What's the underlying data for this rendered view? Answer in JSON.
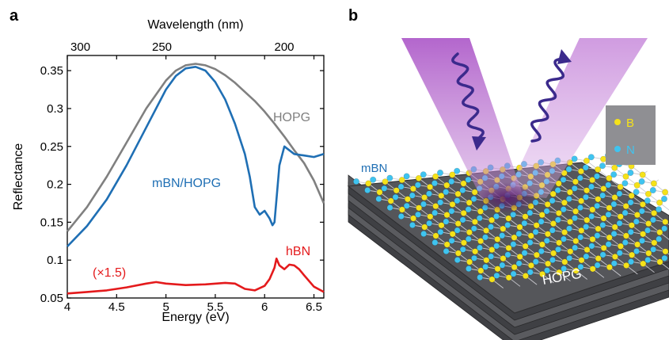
{
  "panel_a": {
    "label": "a"
  },
  "panel_b": {
    "label": "b",
    "layer_label": "mBN",
    "substrate_label": "HOPG",
    "legend": [
      {
        "text": "B",
        "color": "#f5e21a"
      },
      {
        "text": "N",
        "color": "#3fc4f0"
      }
    ],
    "colors": {
      "boron": "#f5e21a",
      "nitrogen": "#3fc4f0",
      "beam": "#b05cc8",
      "photon": "#3b2a8c",
      "substrate": "#55565a"
    }
  },
  "chart_data": {
    "type": "line",
    "xlabel": "Energy (eV)",
    "ylabel": "Reflectance",
    "top_axis_label": "Wavelength (nm)",
    "xlim": [
      4,
      6.6
    ],
    "ylim": [
      0.05,
      0.37
    ],
    "x_ticks": [
      "4",
      "4.5",
      "5",
      "5.5",
      "6",
      "6.5"
    ],
    "y_ticks": [
      "0.05",
      "0.1",
      "0.15",
      "0.2",
      "0.25",
      "0.3",
      "0.35"
    ],
    "top_ticks": [
      {
        "label": "300",
        "energy": 4.133
      },
      {
        "label": "250",
        "energy": 4.959
      },
      {
        "label": "200",
        "energy": 6.199
      }
    ],
    "grid": false,
    "series": [
      {
        "name": "HOPG",
        "color": "#808080",
        "x": [
          4.0,
          4.2,
          4.4,
          4.6,
          4.8,
          5.0,
          5.1,
          5.2,
          5.3,
          5.4,
          5.5,
          5.6,
          5.7,
          5.8,
          5.9,
          6.0,
          6.1,
          6.2,
          6.3,
          6.4,
          6.5,
          6.6
        ],
        "y": [
          0.138,
          0.17,
          0.21,
          0.255,
          0.3,
          0.337,
          0.35,
          0.357,
          0.359,
          0.357,
          0.352,
          0.344,
          0.334,
          0.322,
          0.31,
          0.296,
          0.28,
          0.263,
          0.245,
          0.228,
          0.205,
          0.175
        ]
      },
      {
        "name": "mBN/HOPG",
        "color": "#1f6fb4",
        "x": [
          4.0,
          4.2,
          4.4,
          4.6,
          4.8,
          5.0,
          5.1,
          5.2,
          5.3,
          5.4,
          5.5,
          5.6,
          5.7,
          5.8,
          5.85,
          5.9,
          5.95,
          6.0,
          6.05,
          6.08,
          6.1,
          6.12,
          6.15,
          6.2,
          6.3,
          6.4,
          6.5,
          6.6
        ],
        "y": [
          0.118,
          0.145,
          0.18,
          0.225,
          0.275,
          0.325,
          0.343,
          0.353,
          0.355,
          0.35,
          0.335,
          0.312,
          0.28,
          0.24,
          0.21,
          0.17,
          0.16,
          0.165,
          0.155,
          0.146,
          0.15,
          0.18,
          0.225,
          0.25,
          0.24,
          0.238,
          0.236,
          0.24
        ]
      },
      {
        "name": "hBN",
        "color": "#e41a1c",
        "x": [
          4.0,
          4.2,
          4.4,
          4.6,
          4.8,
          4.9,
          5.0,
          5.2,
          5.4,
          5.6,
          5.7,
          5.8,
          5.9,
          6.0,
          6.05,
          6.1,
          6.12,
          6.15,
          6.2,
          6.25,
          6.3,
          6.35,
          6.4,
          6.5,
          6.6
        ],
        "y": [
          0.056,
          0.058,
          0.06,
          0.064,
          0.069,
          0.071,
          0.069,
          0.067,
          0.068,
          0.07,
          0.069,
          0.062,
          0.06,
          0.066,
          0.075,
          0.09,
          0.102,
          0.093,
          0.088,
          0.094,
          0.093,
          0.088,
          0.08,
          0.065,
          0.058
        ]
      }
    ],
    "annotations": [
      {
        "text": "HOPG",
        "color": "#808080"
      },
      {
        "text": "mBN/HOPG",
        "color": "#1f6fb4"
      },
      {
        "text": "hBN",
        "color": "#e41a1c"
      },
      {
        "text": "(×1.5)",
        "color": "#e41a1c"
      }
    ]
  }
}
